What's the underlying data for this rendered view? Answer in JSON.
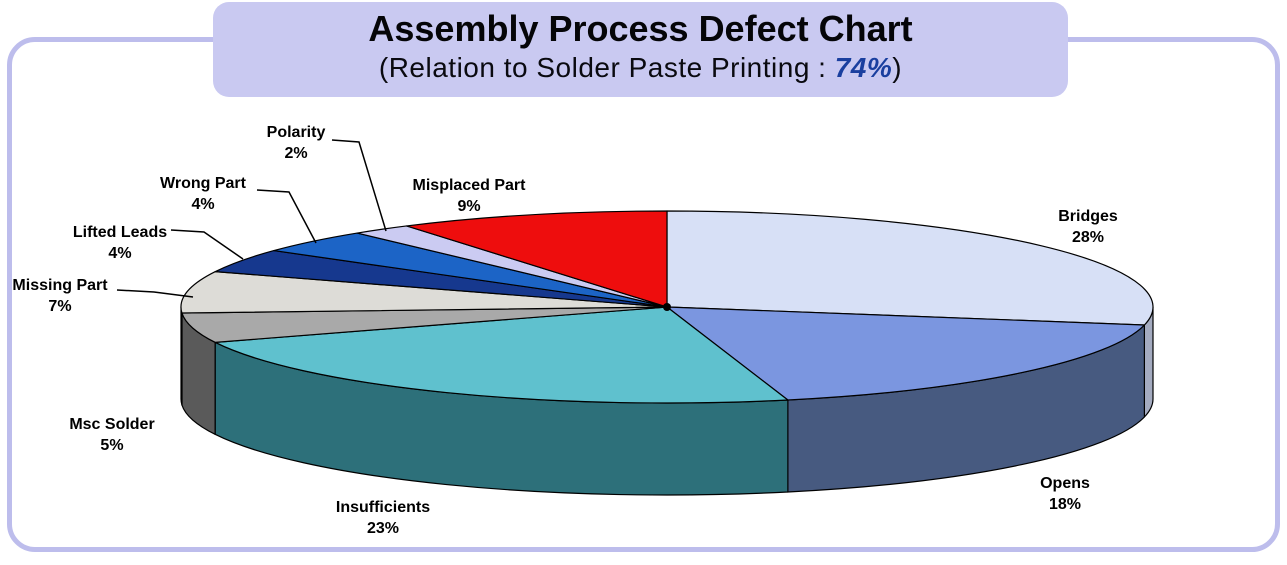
{
  "page": {
    "title": "Assembly Process Defect Chart",
    "subtitle_prefix": "(Relation to Solder Paste Printing : ",
    "subtitle_value": "74%",
    "subtitle_suffix": ")"
  },
  "colors": {
    "frame_border": "#bdbdec",
    "title_background": "#c9c9f1",
    "subtitle_value_color": "#1a3f9f",
    "outline": "#000000"
  },
  "chart_data": {
    "type": "pie",
    "style": "3d",
    "title": "Assembly Process Defect Chart",
    "subtitle": "(Relation to Solder Paste Printing : 74%)",
    "relation_to_solder_paste_printing_pct": 74,
    "start_angle_deg": 0,
    "direction": "clockwise",
    "unit": "%",
    "legend_position": "none",
    "categories": [
      "Bridges",
      "Opens",
      "Insufficients",
      "Msc Solder",
      "Missing Part",
      "Lifted Leads",
      "Wrong Part",
      "Polarity",
      "Misplaced Part"
    ],
    "values": [
      28,
      18,
      23,
      5,
      7,
      4,
      4,
      2,
      9
    ],
    "slice_colors_top": [
      "#d7e0f6",
      "#7b96e0",
      "#5fc1ce",
      "#a9a9a9",
      "#dddcd7",
      "#16388e",
      "#1c64c6",
      "#cbcbf2",
      "#ee0d0d"
    ],
    "slice_colors_side": [
      "#a4abc0",
      "#475a80",
      "#2d707a",
      "#5a5a5a",
      "#7d7d78",
      "#0e2460",
      "#123f85",
      "#9a9ac0",
      "#a00808"
    ]
  }
}
